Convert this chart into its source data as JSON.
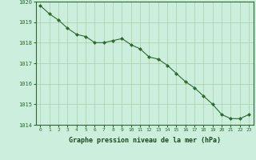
{
  "x": [
    0,
    1,
    2,
    3,
    4,
    5,
    6,
    7,
    8,
    9,
    10,
    11,
    12,
    13,
    14,
    15,
    16,
    17,
    18,
    19,
    20,
    21,
    22,
    23
  ],
  "y": [
    1019.8,
    1019.4,
    1019.1,
    1018.7,
    1018.4,
    1018.3,
    1018.0,
    1018.0,
    1018.1,
    1018.2,
    1017.9,
    1017.7,
    1017.3,
    1017.2,
    1016.9,
    1016.5,
    1016.1,
    1015.8,
    1015.4,
    1015.0,
    1014.5,
    1014.3,
    1014.3,
    1014.5
  ],
  "line_color": "#2d6a2d",
  "marker": "D",
  "marker_size": 2.0,
  "bg_color": "#cceedd",
  "grid_color": "#aaccaa",
  "xlabel": "Graphe pression niveau de la mer (hPa)",
  "xlabel_color": "#1a4a1a",
  "tick_color": "#2d6a2d",
  "ylim": [
    1014.0,
    1020.0
  ],
  "xlim": [
    -0.5,
    23.5
  ],
  "yticks": [
    1014,
    1015,
    1016,
    1017,
    1018,
    1019,
    1020
  ],
  "xtick_labels": [
    "0",
    "1",
    "2",
    "3",
    "4",
    "5",
    "6",
    "7",
    "8",
    "9",
    "10",
    "11",
    "12",
    "13",
    "14",
    "15",
    "16",
    "17",
    "18",
    "19",
    "20",
    "21",
    "22",
    "23"
  ],
  "spine_color": "#2d6a2d"
}
